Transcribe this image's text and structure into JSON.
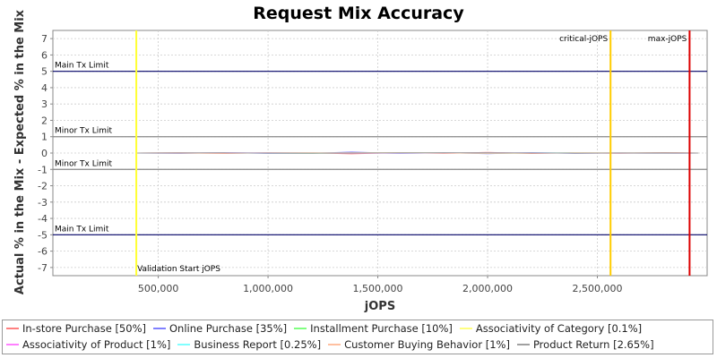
{
  "chart_data": {
    "type": "line",
    "title": "Request Mix Accuracy",
    "xlabel": "jOPS",
    "ylabel": "Actual % in the Mix - Expected % in the Mix",
    "xlim": [
      20000,
      3000000
    ],
    "ylim": [
      -7.5,
      7.5
    ],
    "x_ticks": [
      500000,
      1000000,
      1500000,
      2000000,
      2500000
    ],
    "x_tick_labels": [
      "500,000",
      "1,000,000",
      "1,500,000",
      "2,000,000",
      "2,500,000"
    ],
    "y_ticks": [
      7,
      6,
      5,
      4,
      3,
      2,
      1,
      0,
      -1,
      -2,
      -3,
      -4,
      -5,
      -6,
      -7
    ],
    "y_tick_labels": [
      "7",
      "6",
      "5",
      "4",
      "3",
      "2",
      "1",
      "0",
      "-1",
      "-2",
      "-3",
      "-4",
      "-5",
      "-6",
      "-7"
    ],
    "grid": true,
    "legend_position": "bottom",
    "limit_lines": [
      {
        "label": "Main Tx Limit",
        "y": 5,
        "color": "#000066"
      },
      {
        "label": "Minor Tx Limit",
        "y": 1,
        "color": "#888888"
      },
      {
        "label": "Minor Tx Limit",
        "y": -1,
        "color": "#888888"
      },
      {
        "label": "Main Tx Limit",
        "y": -5,
        "color": "#000066"
      }
    ],
    "markers": [
      {
        "label": "Validation Start jOPS",
        "x": 400000,
        "color": "#ffff33"
      },
      {
        "label": "critical-jOPS",
        "x": 2560000,
        "color": "#ffcc00"
      },
      {
        "label": "max-jOPS",
        "x": 2920000,
        "color": "#dd0000"
      }
    ],
    "series": [
      {
        "name": "In-store Purchase [50%]",
        "color": "#ff8080",
        "x": [
          400000,
          600000,
          800000,
          1000000,
          1200000,
          1380000,
          1600000,
          1800000,
          2000000,
          2200000,
          2400000,
          2600000,
          2800000,
          2960000
        ],
        "values": [
          0,
          0.02,
          -0.03,
          0.02,
          0.01,
          -0.05,
          0.03,
          -0.02,
          0.04,
          -0.03,
          0.02,
          -0.01,
          0.03,
          0
        ]
      },
      {
        "name": "Online Purchase [35%]",
        "color": "#8080ff",
        "x": [
          400000,
          600000,
          800000,
          1000000,
          1200000,
          1380000,
          1600000,
          1800000,
          2000000,
          2200000,
          2400000,
          2600000,
          2800000,
          2960000
        ],
        "values": [
          0,
          -0.02,
          0.03,
          -0.02,
          -0.01,
          0.06,
          -0.03,
          0.02,
          -0.04,
          0.03,
          -0.02,
          0.01,
          -0.03,
          0
        ]
      },
      {
        "name": "Installment Purchase [10%]",
        "color": "#80ff80",
        "x": [
          400000,
          800000,
          1200000,
          1600000,
          2000000,
          2400000,
          2800000,
          2960000
        ],
        "values": [
          0,
          0.01,
          -0.01,
          0.02,
          -0.01,
          0.01,
          -0.02,
          0
        ]
      },
      {
        "name": "Associativity of Category [0.1%]",
        "color": "#ffff80",
        "x": [
          400000,
          800000,
          1200000,
          1600000,
          2000000,
          2400000,
          2800000,
          2960000
        ],
        "values": [
          0,
          0,
          0,
          0,
          0,
          0,
          0,
          0
        ]
      },
      {
        "name": "Associativity of Product [1%]",
        "color": "#ff80ff",
        "x": [
          400000,
          800000,
          1200000,
          1600000,
          2000000,
          2400000,
          2800000,
          2960000
        ],
        "values": [
          0,
          0.01,
          0,
          -0.01,
          0.01,
          0,
          -0.01,
          0
        ]
      },
      {
        "name": "Business Report [0.25%]",
        "color": "#80ffff",
        "x": [
          400000,
          800000,
          1200000,
          1600000,
          2000000,
          2400000,
          2800000,
          2960000
        ],
        "values": [
          0,
          0,
          0.01,
          0,
          0,
          0.01,
          0,
          0
        ]
      },
      {
        "name": "Customer Buying Behavior [1%]",
        "color": "#ffc0a0",
        "x": [
          400000,
          800000,
          1200000,
          1600000,
          2000000,
          2400000,
          2800000,
          2960000
        ],
        "values": [
          0,
          -0.01,
          0.01,
          0.02,
          -0.01,
          0.01,
          0.01,
          0
        ]
      },
      {
        "name": "Product Return [2.65%]",
        "color": "#a0a0a0",
        "x": [
          400000,
          800000,
          1200000,
          1600000,
          2000000,
          2400000,
          2800000,
          2960000
        ],
        "values": [
          0,
          0.01,
          -0.01,
          0.01,
          0.02,
          -0.01,
          0.01,
          0
        ]
      }
    ]
  }
}
